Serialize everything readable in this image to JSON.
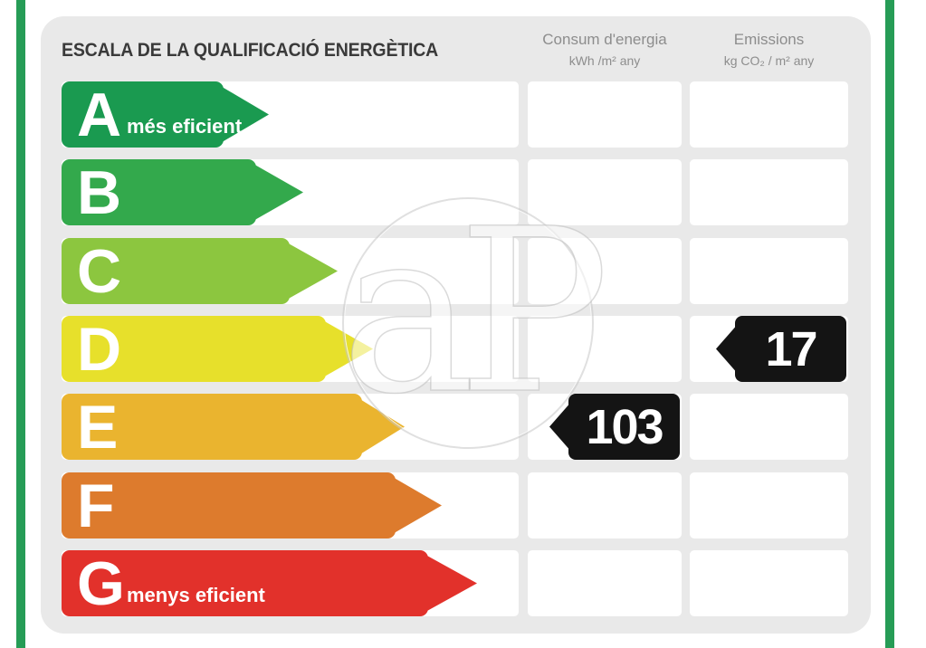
{
  "title": "ESCALA DE LA QUALIFICACIÓ ENERGÈTICA",
  "watermark_text": "aP",
  "frame_color": "#269c56",
  "panel_color": "#e9e9e9",
  "indicator_color": "#141414",
  "columns": {
    "consum": {
      "title": "Consum d'energia",
      "unit": "kWh /m² any"
    },
    "emissions": {
      "title": "Emissions",
      "unit": "kg CO₂ / m² any"
    }
  },
  "scale": {
    "rows": [
      {
        "letter": "A",
        "label": "més eficient",
        "color": "#1a9a50"
      },
      {
        "letter": "B",
        "label": "",
        "color": "#33a94c"
      },
      {
        "letter": "C",
        "label": "",
        "color": "#8cc63f"
      },
      {
        "letter": "D",
        "label": "",
        "color": "#e7e02b"
      },
      {
        "letter": "E",
        "label": "",
        "color": "#eab42f"
      },
      {
        "letter": "F",
        "label": "",
        "color": "#dd7b2d"
      },
      {
        "letter": "G",
        "label": "menys eficient",
        "color": "#e2312b"
      }
    ]
  },
  "indicators": [
    {
      "column": "consum",
      "row": "E",
      "value": "103"
    },
    {
      "column": "emissions",
      "row": "D",
      "value": "17"
    }
  ],
  "chart_data": {
    "type": "bar",
    "title": "ESCALA DE LA QUALIFICACIÓ ENERGÈTICA",
    "categories": [
      "A",
      "B",
      "C",
      "D",
      "E",
      "F",
      "G"
    ],
    "category_labels": {
      "A": "més eficient",
      "G": "menys eficient"
    },
    "bar_colors": [
      "#1a9a50",
      "#33a94c",
      "#8cc63f",
      "#e7e02b",
      "#eab42f",
      "#dd7b2d",
      "#e2312b"
    ],
    "bar_lengths_relative": [
      1,
      2,
      3,
      4,
      5,
      6,
      7
    ],
    "columns": [
      {
        "name": "Consum d'energia",
        "unit": "kWh /m² any",
        "rating": "E",
        "value": 103
      },
      {
        "name": "Emissions",
        "unit": "kg CO₂ / m² any",
        "rating": "D",
        "value": 17
      }
    ],
    "legend_position": "none",
    "grid": false
  }
}
